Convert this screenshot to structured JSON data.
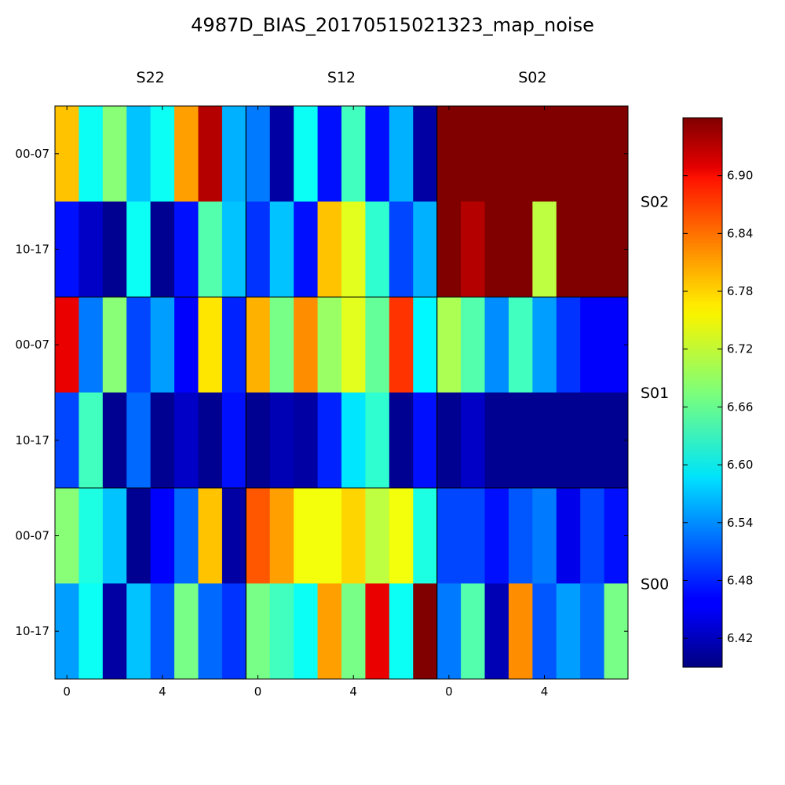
{
  "chart_data": {
    "type": "heatmap",
    "title": "4987D_BIAS_20170515021323_map_noise",
    "colormap": "jet",
    "vmin": 6.39,
    "vmax": 6.96,
    "column_groups": [
      "S22",
      "S12",
      "S02"
    ],
    "row_groups": [
      "S02",
      "S01",
      "S00"
    ],
    "row_tick_labels": [
      "00-07",
      "10-17",
      "00-07",
      "10-17",
      "00-07",
      "10-17"
    ],
    "x_tick_labels": [
      "0",
      "4",
      "0",
      "4",
      "0",
      "4"
    ],
    "x_tick_positions": [
      0,
      4,
      8,
      12,
      16,
      20
    ],
    "colorbar_ticks": [
      "6.42",
      "6.48",
      "6.54",
      "6.60",
      "6.66",
      "6.72",
      "6.78",
      "6.84",
      "6.90"
    ],
    "colorbar_tick_values": [
      6.42,
      6.48,
      6.54,
      6.6,
      6.66,
      6.72,
      6.78,
      6.84,
      6.9
    ],
    "values": [
      [
        6.78,
        6.61,
        6.68,
        6.57,
        6.61,
        6.8,
        6.93,
        6.56,
        6.53,
        6.41,
        6.61,
        6.47,
        6.64,
        6.47,
        6.56,
        6.41,
        6.96,
        6.96,
        6.96,
        6.96,
        6.96,
        6.96,
        6.96,
        6.96
      ],
      [
        6.47,
        6.43,
        6.4,
        6.61,
        6.4,
        6.47,
        6.65,
        6.57,
        6.49,
        6.57,
        6.47,
        6.78,
        6.73,
        6.63,
        6.5,
        6.56,
        6.96,
        6.93,
        6.96,
        6.96,
        6.71,
        6.96,
        6.96,
        6.96
      ],
      [
        6.9,
        6.53,
        6.68,
        6.5,
        6.55,
        6.46,
        6.76,
        6.48,
        6.79,
        6.67,
        6.81,
        6.69,
        6.73,
        6.66,
        6.86,
        6.6,
        6.7,
        6.65,
        6.54,
        6.64,
        6.55,
        6.49,
        6.46,
        6.46
      ],
      [
        6.5,
        6.64,
        6.4,
        6.52,
        6.4,
        6.43,
        6.4,
        6.47,
        6.4,
        6.42,
        6.41,
        6.48,
        6.59,
        6.63,
        6.4,
        6.47,
        6.4,
        6.43,
        6.4,
        6.4,
        6.4,
        6.4,
        6.4,
        6.4
      ],
      [
        6.68,
        6.62,
        6.57,
        6.4,
        6.46,
        6.52,
        6.78,
        6.41,
        6.84,
        6.8,
        6.74,
        6.74,
        6.77,
        6.71,
        6.74,
        6.62,
        6.5,
        6.5,
        6.47,
        6.51,
        6.53,
        6.45,
        6.5,
        6.47
      ],
      [
        6.55,
        6.61,
        6.41,
        6.57,
        6.51,
        6.67,
        6.52,
        6.49,
        6.67,
        6.64,
        6.61,
        6.8,
        6.67,
        6.9,
        6.61,
        6.96,
        6.53,
        6.65,
        6.42,
        6.81,
        6.51,
        6.55,
        6.52,
        6.67
      ]
    ]
  }
}
